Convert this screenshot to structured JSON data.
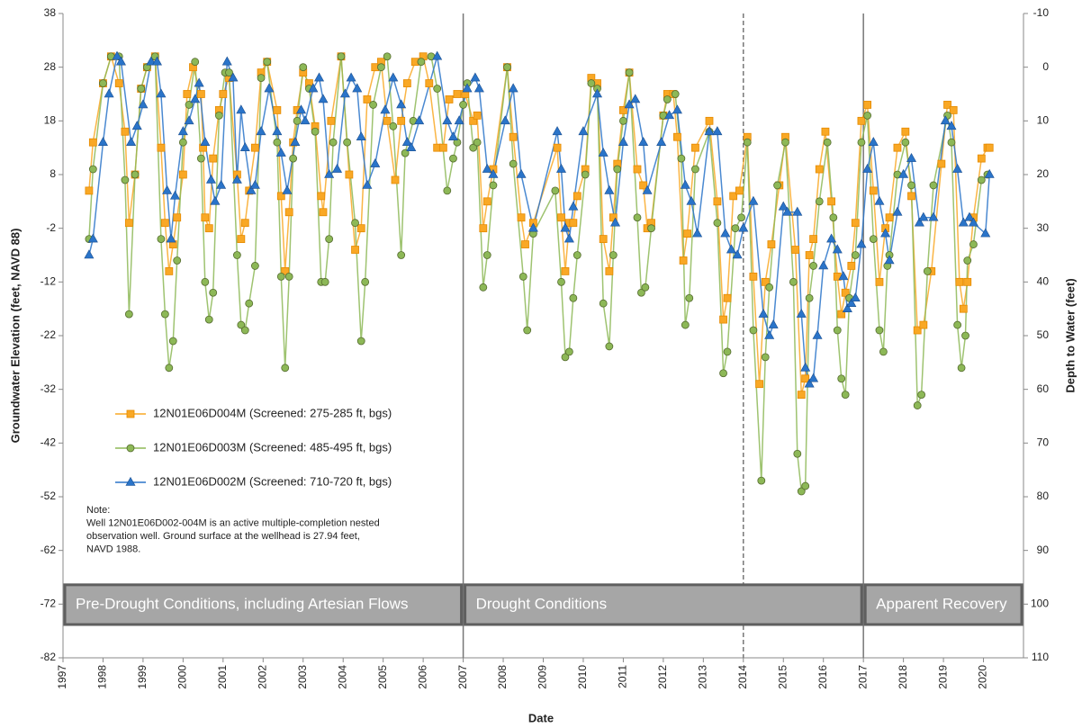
{
  "chart_data": {
    "type": "line",
    "xlabel": "Date",
    "ylabel": "Groundwater Elevation (feet, NAVD 88)",
    "y2label": "Depth to Water (feet)",
    "xlim": [
      1997,
      2021
    ],
    "xticks": [
      1997,
      1998,
      1999,
      2000,
      2001,
      2002,
      2003,
      2004,
      2005,
      2006,
      2007,
      2008,
      2009,
      2010,
      2011,
      2012,
      2013,
      2014,
      2015,
      2016,
      2017,
      2018,
      2019,
      2020
    ],
    "ylim": [
      -82,
      38
    ],
    "yticks": [
      -82,
      -72,
      -62,
      -52,
      -42,
      -32,
      -22,
      -12,
      -2,
      8,
      18,
      28,
      38
    ],
    "y2lim": [
      110,
      -10
    ],
    "y2ticks": [
      -10,
      0,
      10,
      20,
      30,
      40,
      50,
      60,
      70,
      80,
      90,
      100,
      110
    ],
    "grid": false,
    "legend": "left",
    "series": [
      {
        "name": "12N01E06D004M (Screened: 275-285 ft, bgs)",
        "color": "#f9a825",
        "marker": "square",
        "x": [
          1997.65,
          1997.75,
          1998.0,
          1998.2,
          1998.4,
          1998.55,
          1998.65,
          1998.8,
          1998.95,
          1999.1,
          1999.3,
          1999.45,
          1999.55,
          1999.65,
          1999.75,
          1999.85,
          2000.0,
          2000.1,
          2000.25,
          2000.45,
          2000.5,
          2000.55,
          2000.65,
          2000.75,
          2000.9,
          2001.0,
          2001.15,
          2001.35,
          2001.45,
          2001.55,
          2001.65,
          2001.8,
          2001.95,
          2002.1,
          2002.35,
          2002.45,
          2002.55,
          2002.65,
          2002.75,
          2002.85,
          2003.0,
          2003.15,
          2003.3,
          2003.45,
          2003.5,
          2003.7,
          2003.95,
          2004.15,
          2004.3,
          2004.45,
          2004.6,
          2004.8,
          2004.95,
          2005.1,
          2005.3,
          2005.45,
          2005.6,
          2005.8,
          2006.0,
          2006.15,
          2006.35,
          2006.5,
          2006.65,
          2006.85,
          2007.05,
          2007.25,
          2007.35,
          2007.5,
          2007.6,
          2007.75,
          2008.1,
          2008.25,
          2008.45,
          2008.55,
          2008.75,
          2009.35,
          2009.45,
          2009.55,
          2009.65,
          2009.75,
          2009.85,
          2010.05,
          2010.2,
          2010.35,
          2010.5,
          2010.65,
          2010.75,
          2010.85,
          2011.0,
          2011.15,
          2011.35,
          2011.5,
          2011.6,
          2011.7,
          2012.0,
          2012.1,
          2012.25,
          2012.35,
          2012.5,
          2012.6,
          2012.8,
          2013.15,
          2013.35,
          2013.5,
          2013.6,
          2013.75,
          2013.9,
          2014.1,
          2014.25,
          2014.4,
          2014.55,
          2014.7,
          2014.9,
          2015.05,
          2015.3,
          2015.45,
          2015.55,
          2015.65,
          2015.75,
          2015.9,
          2016.05,
          2016.2,
          2016.35,
          2016.45,
          2016.55,
          2016.7,
          2016.8,
          2016.95,
          2017.1,
          2017.25,
          2017.4,
          2017.55,
          2017.65,
          2017.85,
          2018.05,
          2018.2,
          2018.35,
          2018.5,
          2018.7,
          2018.95,
          2019.1,
          2019.25,
          2019.4,
          2019.5,
          2019.6,
          2019.75,
          2019.95,
          2020.1,
          2020.15
        ],
        "values": [
          5,
          14,
          25,
          30,
          25,
          16,
          -1,
          8,
          24,
          28,
          30,
          13,
          -1,
          -10,
          -5,
          0,
          8,
          23,
          28,
          23,
          13,
          0,
          -2,
          11,
          20,
          23,
          26,
          8,
          -4,
          -1,
          5,
          13,
          27,
          29,
          20,
          4,
          -10,
          1,
          14,
          20,
          27,
          25,
          17,
          4,
          1,
          18,
          30,
          8,
          -6,
          -2,
          22,
          28,
          29,
          18,
          7,
          18,
          25,
          29,
          30,
          25,
          13,
          13,
          22,
          23,
          23,
          18,
          19,
          -2,
          3,
          9,
          28,
          15,
          0,
          -5,
          -1,
          13,
          0,
          -10,
          -1,
          -1,
          4,
          9,
          26,
          25,
          -4,
          -10,
          0,
          10,
          20,
          27,
          9,
          6,
          -2,
          -1,
          19,
          23,
          23,
          15,
          -8,
          -3,
          13,
          18,
          3,
          -19,
          -15,
          4,
          5,
          15,
          -11,
          -31,
          -12,
          -5,
          6,
          15,
          -6,
          -33,
          -30,
          -7,
          -4,
          9,
          16,
          3,
          -11,
          -18,
          -14,
          -9,
          -1,
          18,
          21,
          5,
          -12,
          -2,
          0,
          13,
          16,
          4,
          -21,
          -20,
          -10,
          10,
          21,
          20,
          -12,
          -17,
          -12,
          0,
          11,
          13,
          13
        ]
      },
      {
        "name": "12N01E06D003M (Screened: 485-495 ft, bgs)",
        "color": "#8db857",
        "marker": "circle",
        "x": [
          1997.65,
          1997.75,
          1998.0,
          1998.2,
          1998.4,
          1998.55,
          1998.65,
          1998.8,
          1998.95,
          1999.1,
          1999.3,
          1999.45,
          1999.55,
          1999.65,
          1999.75,
          1999.85,
          2000.0,
          2000.15,
          2000.3,
          2000.45,
          2000.55,
          2000.65,
          2000.75,
          2000.9,
          2001.05,
          2001.15,
          2001.35,
          2001.45,
          2001.55,
          2001.65,
          2001.8,
          2001.95,
          2002.1,
          2002.35,
          2002.45,
          2002.55,
          2002.65,
          2002.75,
          2002.85,
          2003.0,
          2003.15,
          2003.3,
          2003.45,
          2003.55,
          2003.65,
          2003.75,
          2003.95,
          2004.1,
          2004.3,
          2004.45,
          2004.55,
          2004.75,
          2004.95,
          2005.1,
          2005.25,
          2005.45,
          2005.55,
          2005.75,
          2005.95,
          2006.2,
          2006.35,
          2006.6,
          2006.75,
          2006.85,
          2007.0,
          2007.1,
          2007.25,
          2007.35,
          2007.5,
          2007.6,
          2007.75,
          2008.1,
          2008.25,
          2008.5,
          2008.6,
          2008.75,
          2009.3,
          2009.45,
          2009.55,
          2009.65,
          2009.75,
          2009.85,
          2010.05,
          2010.2,
          2010.35,
          2010.5,
          2010.65,
          2010.75,
          2010.85,
          2011.0,
          2011.15,
          2011.35,
          2011.45,
          2011.55,
          2011.7,
          2012.0,
          2012.1,
          2012.3,
          2012.45,
          2012.55,
          2012.65,
          2012.8,
          2013.15,
          2013.35,
          2013.5,
          2013.6,
          2013.8,
          2013.95,
          2014.1,
          2014.25,
          2014.45,
          2014.55,
          2014.65,
          2014.85,
          2015.05,
          2015.25,
          2015.35,
          2015.45,
          2015.55,
          2015.65,
          2015.75,
          2015.9,
          2016.1,
          2016.25,
          2016.35,
          2016.45,
          2016.55,
          2016.65,
          2016.8,
          2016.95,
          2017.1,
          2017.25,
          2017.4,
          2017.5,
          2017.6,
          2017.65,
          2017.85,
          2018.05,
          2018.2,
          2018.35,
          2018.45,
          2018.6,
          2018.75,
          2019.1,
          2019.2,
          2019.35,
          2019.45,
          2019.55,
          2019.6,
          2019.75,
          2019.95,
          2020.1
        ],
        "values": [
          -4,
          9,
          25,
          30,
          30,
          7,
          -18,
          8,
          24,
          28,
          30,
          -4,
          -18,
          -28,
          -23,
          -8,
          14,
          21,
          29,
          11,
          -12,
          -19,
          -14,
          19,
          27,
          27,
          -7,
          -20,
          -21,
          -16,
          -9,
          26,
          29,
          14,
          -11,
          -28,
          -11,
          11,
          18,
          28,
          24,
          16,
          -12,
          -12,
          -4,
          14,
          30,
          14,
          -1,
          -23,
          -12,
          21,
          28,
          30,
          17,
          -7,
          12,
          18,
          29,
          30,
          24,
          5,
          11,
          14,
          21,
          25,
          13,
          14,
          -13,
          -7,
          6,
          28,
          10,
          -11,
          -21,
          -3,
          5,
          -12,
          -26,
          -25,
          -15,
          -7,
          8,
          25,
          24,
          -16,
          -24,
          -7,
          9,
          18,
          27,
          0,
          -14,
          -13,
          -2,
          19,
          22,
          23,
          11,
          -20,
          -15,
          9,
          16,
          -1,
          -29,
          -25,
          -2,
          0,
          14,
          -21,
          -49,
          -26,
          -13,
          6,
          14,
          -12,
          -44,
          -51,
          -50,
          -15,
          -9,
          3,
          14,
          0,
          -21,
          -30,
          -33,
          -15,
          -7,
          14,
          19,
          -4,
          -21,
          -25,
          -9,
          -7,
          8,
          14,
          6,
          -35,
          -33,
          -10,
          6,
          19,
          14,
          -20,
          -28,
          -22,
          -8,
          -5,
          7,
          8
        ]
      },
      {
        "name": "12N01E06D002M (Screened: 710-720 ft, bgs)",
        "color": "#2a74c9",
        "marker": "triangle",
        "x": [
          1997.65,
          1997.75,
          1998.0,
          1998.15,
          1998.35,
          1998.45,
          1998.7,
          1998.85,
          1999.0,
          1999.2,
          1999.35,
          1999.45,
          1999.6,
          1999.7,
          1999.8,
          2000.0,
          2000.15,
          2000.3,
          2000.4,
          2000.55,
          2000.7,
          2000.8,
          2000.95,
          2001.1,
          2001.25,
          2001.35,
          2001.45,
          2001.55,
          2001.7,
          2001.8,
          2001.95,
          2002.15,
          2002.35,
          2002.45,
          2002.6,
          2002.8,
          2002.95,
          2003.05,
          2003.25,
          2003.4,
          2003.5,
          2003.65,
          2003.85,
          2004.05,
          2004.2,
          2004.35,
          2004.45,
          2004.6,
          2004.8,
          2005.05,
          2005.25,
          2005.45,
          2005.6,
          2005.7,
          2005.9,
          2006.35,
          2006.6,
          2006.75,
          2006.9,
          2007.1,
          2007.3,
          2007.4,
          2007.6,
          2007.75,
          2008.05,
          2008.25,
          2008.45,
          2008.75,
          2009.35,
          2009.45,
          2009.55,
          2009.65,
          2009.75,
          2010.0,
          2010.35,
          2010.5,
          2010.65,
          2010.8,
          2011.0,
          2011.15,
          2011.3,
          2011.5,
          2011.6,
          2011.95,
          2012.15,
          2012.35,
          2012.55,
          2012.7,
          2012.85,
          2013.15,
          2013.35,
          2013.55,
          2013.7,
          2013.85,
          2014.0,
          2014.25,
          2014.5,
          2014.65,
          2014.75,
          2015.0,
          2015.1,
          2015.35,
          2015.45,
          2015.55,
          2015.65,
          2015.75,
          2015.85,
          2016.0,
          2016.2,
          2016.35,
          2016.5,
          2016.6,
          2016.7,
          2016.8,
          2016.95,
          2017.1,
          2017.25,
          2017.4,
          2017.55,
          2017.65,
          2017.85,
          2018.0,
          2018.2,
          2018.4,
          2018.5,
          2018.75,
          2019.05,
          2019.2,
          2019.35,
          2019.5,
          2019.65,
          2019.75,
          2020.05,
          2020.15
        ],
        "values": [
          -7,
          -4,
          14,
          23,
          30,
          29,
          14,
          17,
          21,
          29,
          29,
          23,
          5,
          -4,
          4,
          16,
          18,
          22,
          25,
          14,
          7,
          3,
          6,
          29,
          26,
          7,
          20,
          13,
          5,
          6,
          16,
          24,
          16,
          12,
          5,
          14,
          20,
          18,
          24,
          26,
          22,
          8,
          9,
          23,
          26,
          24,
          15,
          6,
          10,
          20,
          26,
          21,
          14,
          13,
          18,
          30,
          18,
          15,
          18,
          24,
          26,
          24,
          9,
          8,
          18,
          24,
          8,
          -2,
          16,
          9,
          -2,
          -4,
          2,
          16,
          23,
          12,
          5,
          -1,
          14,
          21,
          22,
          14,
          5,
          14,
          19,
          20,
          6,
          3,
          -3,
          16,
          16,
          -3,
          -6,
          -7,
          -2,
          3,
          -18,
          -22,
          -20,
          2,
          1,
          1,
          -18,
          -28,
          -31,
          -30,
          -22,
          -9,
          -4,
          -6,
          -11,
          -17,
          -16,
          -15,
          -5,
          9,
          14,
          3,
          -3,
          -8,
          1,
          8,
          11,
          -1,
          0,
          0,
          18,
          17,
          9,
          -1,
          0,
          -1,
          -3,
          8
        ]
      }
    ],
    "vlines": [
      {
        "x": 2007,
        "dashed": false
      },
      {
        "x": 2014,
        "dashed": true
      },
      {
        "x": 2017,
        "dashed": false
      }
    ],
    "phases": [
      {
        "label": "Pre-Drought Conditions, including Artesian Flows",
        "start": 1997,
        "end": 2007
      },
      {
        "label": "Drought Conditions",
        "start": 2007,
        "end": 2017
      },
      {
        "label": "Apparent Recovery",
        "start": 2017,
        "end": 2021
      }
    ],
    "note": [
      "Note:",
      "Well 12N01E06D002-004M is an active multiple-completion nested",
      "observation well. Ground surface at the wellhead is 27.94 feet,",
      "NAVD 1988."
    ]
  }
}
